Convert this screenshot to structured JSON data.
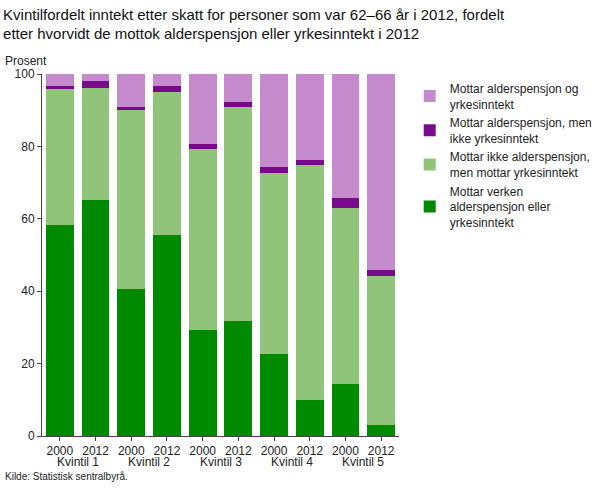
{
  "chart_data": {
    "type": "bar",
    "stacked": true,
    "title": "Kvintilfordelt inntekt etter skatt for personer som var 62–66 år i 2012, fordelt\netter hvorvidt de mottok alderspensjon eller yrkesinntekt i 2012",
    "y_label": "Prosent",
    "source": "Kilde: Statistisk sentralbyrå.",
    "categories": [
      "2000",
      "2012",
      "2000",
      "2012",
      "2000",
      "2012",
      "2000",
      "2012",
      "2000",
      "2012"
    ],
    "group_labels": [
      "Kvintil 1",
      "Kvintil 2",
      "Kvintil 3",
      "Kvintil 4",
      "Kvintil 5"
    ],
    "series": [
      {
        "name": "Mottar verken alderspensjon eller yrkesinntekt",
        "color": "#008a00",
        "values": [
          58.3,
          65.3,
          40.7,
          55.6,
          29.4,
          31.9,
          22.6,
          10.0,
          14.3,
          3.0
        ]
      },
      {
        "name": "Mottar ikke alderspensjon, men mottar yrkesinntekt",
        "color": "#8fc47a",
        "values": [
          37.5,
          30.9,
          49.3,
          39.3,
          50.0,
          59.1,
          50.0,
          64.8,
          48.7,
          41.3
        ]
      },
      {
        "name": "Mottar alderspensjon, men ikke yrkesinntekt",
        "color": "#7a0a8c",
        "values": [
          1.0,
          1.8,
          1.0,
          1.7,
          1.3,
          1.3,
          1.8,
          1.5,
          2.8,
          1.5
        ]
      },
      {
        "name": "Mottar alderspensjon og yrkesinntekt",
        "color": "#c48acc",
        "values": [
          3.2,
          2.0,
          9.0,
          3.4,
          19.3,
          7.7,
          25.6,
          23.7,
          34.2,
          54.2
        ]
      }
    ],
    "ylim": [
      0,
      100
    ],
    "yticks": [
      0,
      20,
      40,
      60,
      80,
      100
    ],
    "grid": false,
    "legend": "right"
  }
}
